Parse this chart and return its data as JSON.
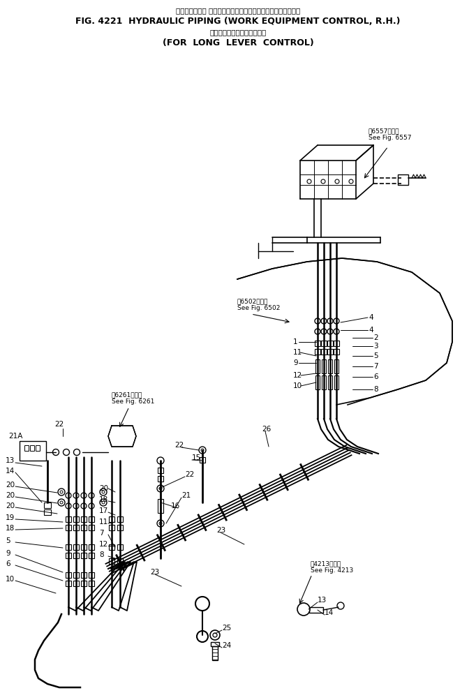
{
  "title_jp": "ハイドロリック パイピング　作　業　機・　コントロール，右",
  "title_en": "FIG. 4221  HYDRAULIC PIPING (WORK EQUIPMENT CONTROL, R.H.)",
  "subtitle_jp": "ロングレバーコントロール用",
  "subtitle_en": "(FOR  LONG  LEVER  CONTROL)",
  "bg_color": "#ffffff",
  "line_color": "#000000"
}
